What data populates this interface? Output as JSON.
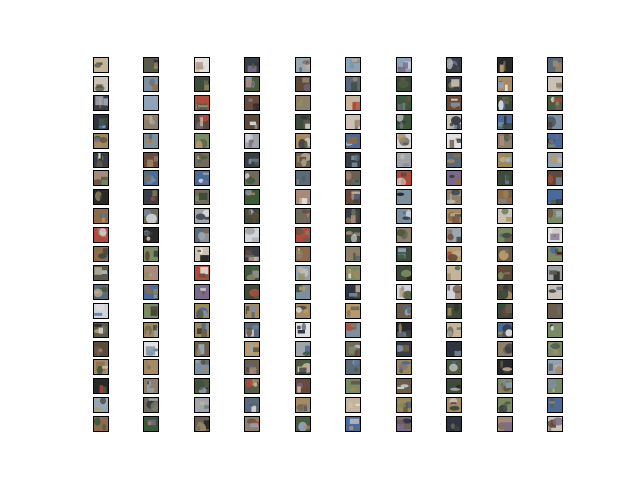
{
  "figure": {
    "description_free": true,
    "columns": 10,
    "rows": 20,
    "tile_border_color": "#000000",
    "background_color": "#ffffff",
    "palette": [
      "#8fa3b8",
      "#6f6a5c",
      "#3e4a3a",
      "#a58a62",
      "#7b8f9e",
      "#5c4a3a",
      "#c9c2b5",
      "#2f3540",
      "#8e7f6a",
      "#b59a6b",
      "#4d5b3e",
      "#9aa7b0",
      "#6b5e4c",
      "#3a3f46",
      "#c4b49a",
      "#7a8a62",
      "#a0a4a8",
      "#5a6a7a",
      "#8c6a4a",
      "#d0d4d8",
      "#2a2a2a",
      "#b04a3a",
      "#4a6a9a",
      "#e0e0e0",
      "#6a4a3a",
      "#9a8a5a",
      "#3a5a3a",
      "#7a6a8a",
      "#a88a7a",
      "#5a5a4a"
    ]
  }
}
